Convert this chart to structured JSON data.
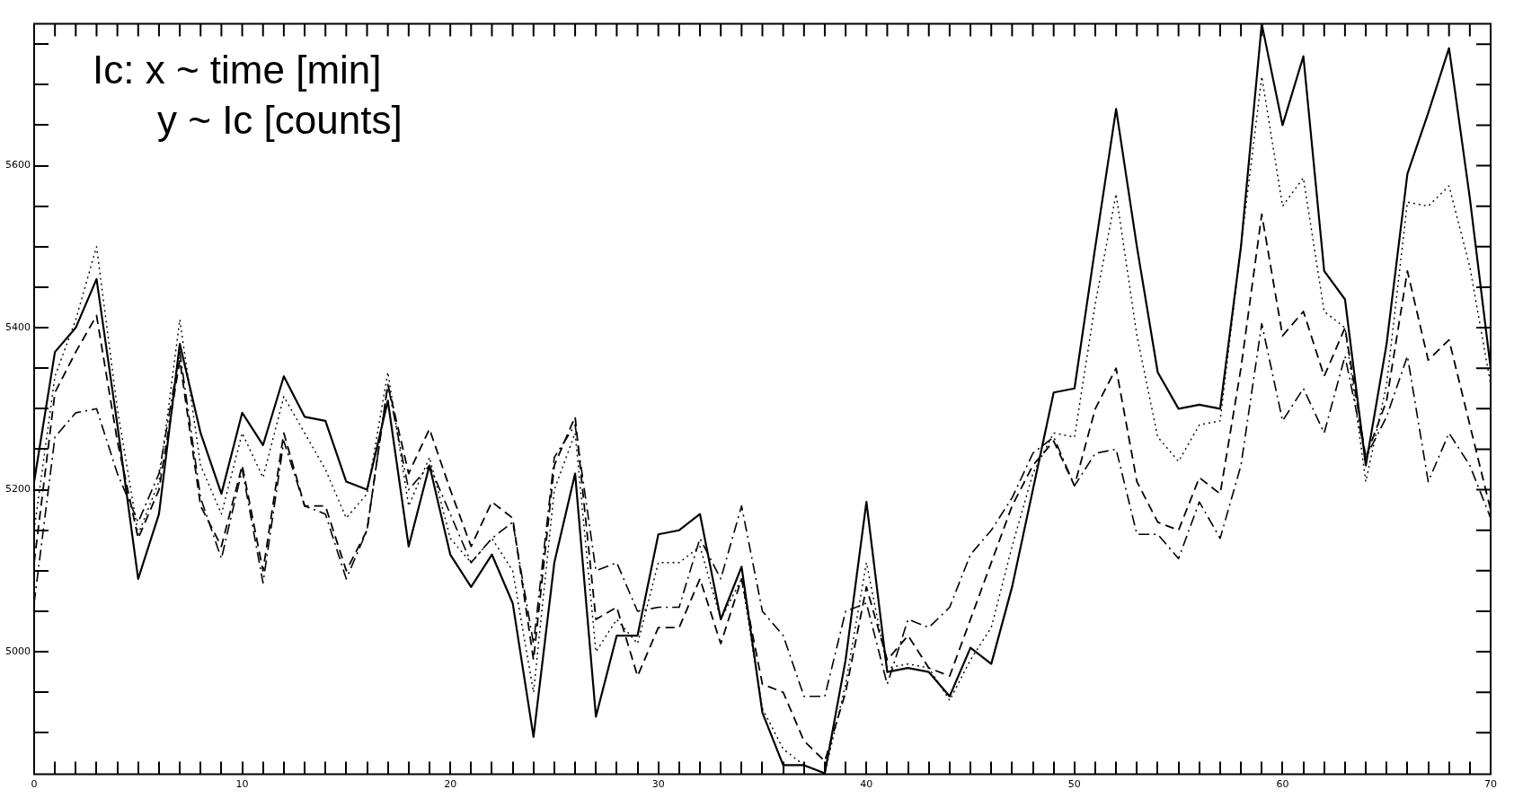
{
  "chart_data": {
    "type": "line",
    "annotations": [
      "Ic: x ~ time [min]",
      "y ~ Ic [counts]"
    ],
    "x": [
      0,
      1,
      2,
      3,
      4,
      5,
      6,
      7,
      8,
      9,
      10,
      11,
      12,
      13,
      14,
      15,
      16,
      17,
      18,
      19,
      20,
      21,
      22,
      23,
      24,
      25,
      26,
      27,
      28,
      29,
      30,
      31,
      32,
      33,
      34,
      35,
      36,
      37,
      38,
      39,
      40,
      41,
      42,
      43,
      44,
      45,
      46,
      47,
      48,
      49,
      50,
      51,
      52,
      53,
      54,
      55,
      56,
      57,
      58,
      59,
      60,
      61,
      62,
      63,
      64,
      65,
      66,
      67,
      68,
      69,
      70
    ],
    "series": [
      {
        "color": "#000000",
        "line_style": "solid",
        "values": [
          5210,
          5370,
          5400,
          5460,
          5280,
          5090,
          5170,
          5380,
          5270,
          5195,
          5295,
          5255,
          5340,
          5290,
          5285,
          5210,
          5200,
          5310,
          5130,
          5230,
          5120,
          5080,
          5120,
          5060,
          4895,
          5110,
          5220,
          4920,
          5020,
          5020,
          5145,
          5150,
          5170,
          5040,
          5105,
          4925,
          4860,
          4860,
          4850,
          4990,
          5185,
          4975,
          4980,
          4975,
          4945,
          5005,
          4985,
          5080,
          5200,
          5320,
          5325,
          5500,
          5670,
          5500,
          5345,
          5300,
          5305,
          5300,
          5500,
          5775,
          5650,
          5735,
          5470,
          5435,
          5230,
          5380,
          5590,
          5665,
          5745,
          5560,
          5350
        ]
      },
      {
        "color": "#000000",
        "line_style": "dotted",
        "values": [
          5150,
          5340,
          5410,
          5500,
          5300,
          5145,
          5210,
          5410,
          5230,
          5170,
          5270,
          5215,
          5315,
          5270,
          5225,
          5165,
          5195,
          5345,
          5180,
          5240,
          5140,
          5110,
          5140,
          5100,
          4950,
          5200,
          5270,
          5000,
          5040,
          5010,
          5110,
          5110,
          5130,
          5040,
          5090,
          4930,
          4880,
          4860,
          4850,
          4960,
          5110,
          4980,
          4985,
          4980,
          4940,
          4990,
          5030,
          5130,
          5220,
          5270,
          5265,
          5430,
          5565,
          5390,
          5265,
          5235,
          5280,
          5285,
          5500,
          5710,
          5550,
          5585,
          5420,
          5400,
          5210,
          5330,
          5555,
          5550,
          5575,
          5475,
          5330
        ]
      },
      {
        "color": "#000000",
        "line_style": "dashed",
        "values": [
          5110,
          5320,
          5370,
          5415,
          5260,
          5140,
          5200,
          5360,
          5180,
          5130,
          5230,
          5100,
          5270,
          5180,
          5180,
          5100,
          5150,
          5330,
          5220,
          5275,
          5200,
          5130,
          5185,
          5165,
          4990,
          5230,
          5290,
          5040,
          5055,
          4970,
          5030,
          5030,
          5090,
          5010,
          5090,
          4960,
          4950,
          4890,
          4865,
          4950,
          5080,
          4990,
          5020,
          4980,
          4970,
          5040,
          5110,
          5180,
          5230,
          5260,
          5205,
          5300,
          5350,
          5210,
          5160,
          5150,
          5215,
          5195,
          5350,
          5540,
          5390,
          5420,
          5340,
          5400,
          5240,
          5310,
          5470,
          5360,
          5385,
          5280,
          5175
        ]
      },
      {
        "color": "#000000",
        "line_style": "dashdot",
        "values": [
          5060,
          5265,
          5295,
          5300,
          5220,
          5160,
          5220,
          5370,
          5190,
          5115,
          5225,
          5085,
          5260,
          5180,
          5170,
          5090,
          5150,
          5330,
          5200,
          5230,
          5170,
          5110,
          5140,
          5160,
          5010,
          5240,
          5280,
          5100,
          5110,
          5050,
          5055,
          5055,
          5140,
          5090,
          5180,
          5050,
          5020,
          4945,
          4945,
          5050,
          5060,
          4960,
          5040,
          5030,
          5055,
          5120,
          5150,
          5190,
          5245,
          5265,
          5205,
          5245,
          5250,
          5145,
          5145,
          5115,
          5185,
          5140,
          5230,
          5405,
          5285,
          5325,
          5270,
          5365,
          5240,
          5290,
          5365,
          5210,
          5270,
          5230,
          5165
        ]
      }
    ],
    "xlim": [
      0,
      70
    ],
    "ylim": [
      4849,
      5775
    ],
    "xticks": [
      0,
      {
        "value": 1,
        "label": null
      },
      {
        "value": 2,
        "label": null
      },
      {
        "value": 3,
        "label": null
      },
      {
        "value": 4,
        "label": null
      },
      {
        "value": 5,
        "label": null
      },
      {
        "value": 6,
        "label": null
      },
      {
        "value": 7,
        "label": null
      },
      {
        "value": 8,
        "label": null
      },
      {
        "value": 9,
        "label": null
      },
      10,
      {
        "value": 11,
        "label": null
      },
      {
        "value": 12,
        "label": null
      },
      {
        "value": 13,
        "label": null
      },
      {
        "value": 14,
        "label": null
      },
      {
        "value": 15,
        "label": null
      },
      {
        "value": 16,
        "label": null
      },
      {
        "value": 17,
        "label": null
      },
      {
        "value": 18,
        "label": null
      },
      {
        "value": 19,
        "label": null
      },
      20,
      {
        "value": 21,
        "label": null
      },
      {
        "value": 22,
        "label": null
      },
      {
        "value": 23,
        "label": null
      },
      {
        "value": 24,
        "label": null
      },
      {
        "value": 25,
        "label": null
      },
      {
        "value": 26,
        "label": null
      },
      {
        "value": 27,
        "label": null
      },
      {
        "value": 28,
        "label": null
      },
      {
        "value": 29,
        "label": null
      },
      30,
      {
        "value": 31,
        "label": null
      },
      {
        "value": 32,
        "label": null
      },
      {
        "value": 33,
        "label": null
      },
      {
        "value": 34,
        "label": null
      },
      {
        "value": 35,
        "label": null
      },
      {
        "value": 36,
        "label": null
      },
      {
        "value": 37,
        "label": null
      },
      {
        "value": 38,
        "label": null
      },
      {
        "value": 39,
        "label": null
      },
      40,
      {
        "value": 41,
        "label": null
      },
      {
        "value": 42,
        "label": null
      },
      {
        "value": 43,
        "label": null
      },
      {
        "value": 44,
        "label": null
      },
      {
        "value": 45,
        "label": null
      },
      {
        "value": 46,
        "label": null
      },
      {
        "value": 47,
        "label": null
      },
      {
        "value": 48,
        "label": null
      },
      {
        "value": 49,
        "label": null
      },
      50,
      {
        "value": 51,
        "label": null
      },
      {
        "value": 52,
        "label": null
      },
      {
        "value": 53,
        "label": null
      },
      {
        "value": 54,
        "label": null
      },
      {
        "value": 55,
        "label": null
      },
      {
        "value": 56,
        "label": null
      },
      {
        "value": 57,
        "label": null
      },
      {
        "value": 58,
        "label": null
      },
      {
        "value": 59,
        "label": null
      },
      60,
      {
        "value": 61,
        "label": null
      },
      {
        "value": 62,
        "label": null
      },
      {
        "value": 63,
        "label": null
      },
      {
        "value": 64,
        "label": null
      },
      {
        "value": 65,
        "label": null
      },
      {
        "value": 66,
        "label": null
      },
      {
        "value": 67,
        "label": null
      },
      {
        "value": 68,
        "label": null
      },
      {
        "value": 69,
        "label": null
      },
      70
    ],
    "yticks": [
      {
        "value": 4900,
        "label": null
      },
      {
        "value": 4950,
        "label": null
      },
      5000,
      {
        "value": 5050,
        "label": null
      },
      {
        "value": 5100,
        "label": null
      },
      {
        "value": 5150,
        "label": null
      },
      5200,
      {
        "value": 5250,
        "label": null
      },
      {
        "value": 5300,
        "label": null
      },
      {
        "value": 5350,
        "label": null
      },
      5400,
      {
        "value": 5450,
        "label": null
      },
      {
        "value": 5500,
        "label": null
      },
      {
        "value": 5550,
        "label": null
      },
      5600,
      {
        "value": 5650,
        "label": null
      },
      {
        "value": 5700,
        "label": null
      },
      {
        "value": 5750,
        "label": null
      }
    ],
    "grid": false,
    "legend": false,
    "marker": "none"
  }
}
